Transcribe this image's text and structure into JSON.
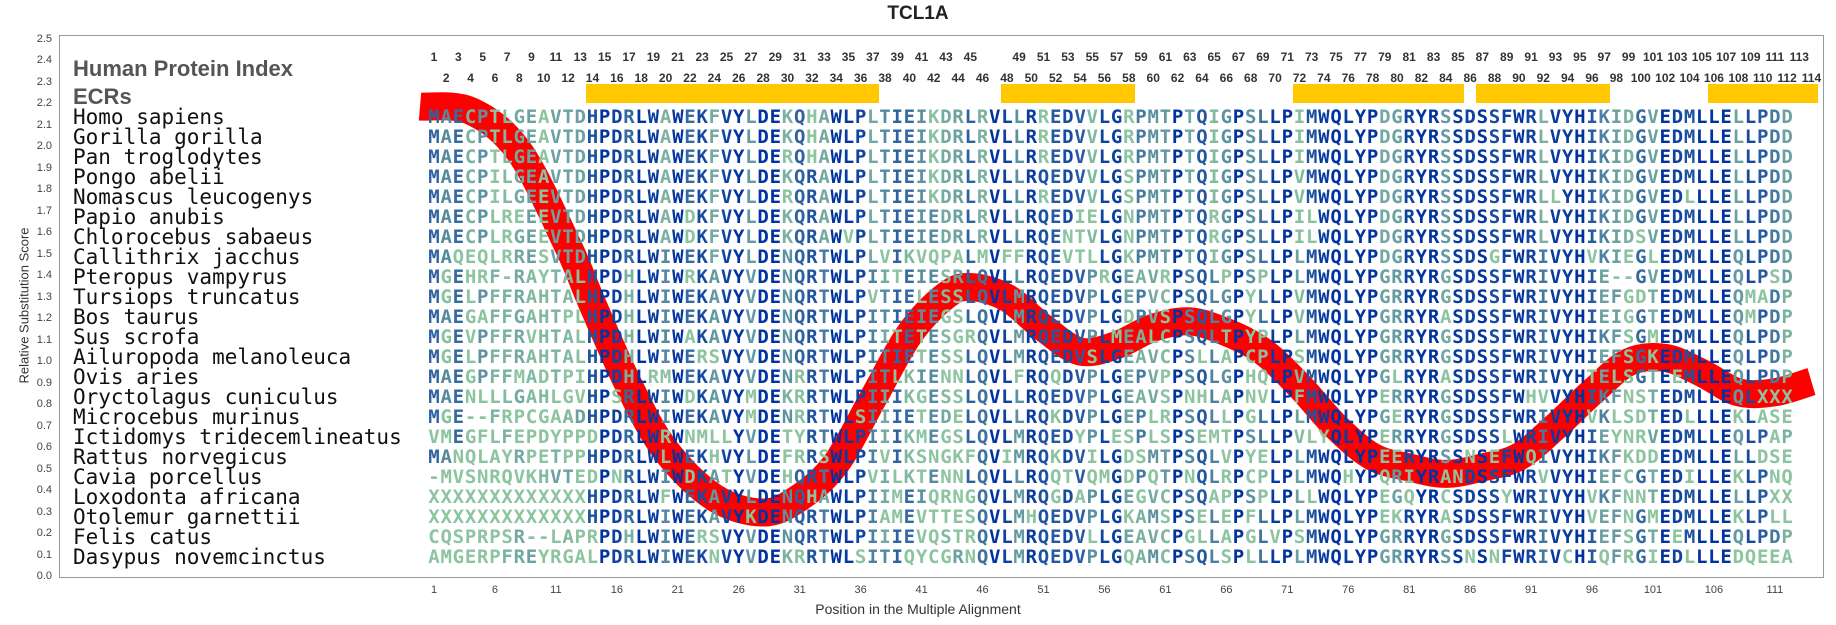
{
  "title": "TCL1A",
  "header": {
    "human_index_label": "Human Protein Index",
    "ecr_label": "ECRs"
  },
  "human_index": {
    "odd": [
      1,
      3,
      5,
      7,
      9,
      11,
      13,
      15,
      17,
      19,
      21,
      23,
      25,
      27,
      29,
      31,
      33,
      35,
      37,
      39,
      41,
      43,
      45,
      49,
      51,
      53,
      55,
      57,
      59,
      61,
      63,
      65,
      67,
      69,
      71,
      73,
      75,
      77,
      79,
      81,
      83,
      85,
      87,
      89,
      91,
      93,
      95,
      97,
      99,
      101,
      103,
      105,
      107,
      109,
      111,
      113
    ],
    "even": [
      2,
      4,
      6,
      8,
      10,
      12,
      14,
      16,
      18,
      20,
      22,
      24,
      26,
      28,
      30,
      32,
      34,
      36,
      38,
      40,
      42,
      44,
      46,
      48,
      50,
      52,
      54,
      56,
      58,
      60,
      62,
      64,
      66,
      68,
      70,
      72,
      74,
      76,
      78,
      80,
      82,
      84,
      86,
      88,
      90,
      92,
      94,
      96,
      98,
      100,
      102,
      104,
      106,
      108,
      110,
      112,
      114
    ]
  },
  "ecrs": [
    [
      14,
      37
    ],
    [
      48,
      58
    ],
    [
      72,
      85
    ],
    [
      87,
      97
    ],
    [
      106,
      114
    ]
  ],
  "colors": {
    "ecr": "#ffc800",
    "curve": "#ff0000",
    "conserved": "#0033a0",
    "variable": "#8cc4a0"
  },
  "species": [
    {
      "name": "Homo sapiens",
      "seq": "MAECPTLGEAVTDHPDRLWAWEKFVYLDEKQHAWLPLTIEIKDRLRVLLRREDVVLGRPMTPTQIGPSLLPIMWQLYPDGRYRSSDSSFWRLVYHIKIDGVEDMLLELLPDD"
    },
    {
      "name": "Gorilla gorilla",
      "seq": "MAECPTLGEAVTDHPDRLWAWEKFVYLDEKQHAWLPLTIEIKDRLRVLLRREDVVLGRPMTPTQIGPSLLPIMWQLYPDGRYRSSDSSFWRLVYHIKIDGVEDMLLELLPDD"
    },
    {
      "name": "Pan troglodytes",
      "seq": "MAECPTLGEAVTDHPDRLWAWEKFVYLDERQHAWLPLTIEIKDRLRVLLRREDVVLGRPMTPTQIGPSLLPIMWQLYPDGRYRSSDSSFWRLVYHIKIDGVEDMLLELLPDD"
    },
    {
      "name": "Pongo abelii",
      "seq": "MAECPILGEAVTDHPDRLWAWEKFVYLDEKQRAWLPLTIEIKDRLRVLLRQEDVVLGSPMTPTQIGPSLLPVMWQLYPDGRYRSSDSSFWRLVYHIKIDGVEDMLLELLPDD"
    },
    {
      "name": "Nomascus leucogenys",
      "seq": "MAECPILGEEVTDHPDRLWAWEKFVYLDERQRAWLPLTIEIKDRLRVLLRREDVVLGSPMTPTQIGPSLLPVMWQLYPDGRYRSSDSSFWRLLYHIKIDGVEDLLLELLPDD"
    },
    {
      "name": "Papio anubis",
      "seq": "MAECPLREEEVTDHPDRLWAWDKFVYLDEKQRAWLPLTIEIEDRLRVLLRQEDIELGNPMTPTQRGPSLLPILWQLYPDGRYRSSDSSFWRLVYHIKIDGVEDMLLELLPDD"
    },
    {
      "name": "Chlorocebus sabaeus",
      "seq": "MAECPLRGEEVTDHPDRLWAWDKFVYLDEKQRAWVPLTIEIEDRLRVLLRQENTVLGNPMTPTQRGPSLLPILWQLYPDGRYRSSDSSFWRLVYHIKIDSVEDMLLELLPDD"
    },
    {
      "name": "Callithrix jacchus",
      "seq": "MAQEQLRRESVTDHPDRLWIWEKFVYLDENQRTWLPLVIKVQPALMVFFRQEVTLLGKPMTPTQIGPSLLPLMWQLYPDGRYRSSDSGFWRIVYHVKIEGLEDMLLEQLPDD"
    },
    {
      "name": "Pteropus vampyrus",
      "seq": "MGEHRF-RAYTALHPDHLWIWRKAVYVDENQRTWLPIITEIESRLQVLLRQEDVPRGEAVRPSQLPPSPLPLMWQLYPGRRYRGSDSSFWRIVYHIE--GVEDMLLEQLPSD"
    },
    {
      "name": "Tursiops truncatus",
      "seq": "MGELPFFRAHTALHPDHLWIWEKAVYVDENQRTWLPVTIELESSLQVLMRQEDVPLGEPVCPSQLGPYLLPVMWQLYPGRRYRGSDSSFWRIVYHIEFGDTEDMLLEQMADP"
    },
    {
      "name": "Bos taurus",
      "seq": "MAEGAFFGAHTPLHPDHLWIWEKAVYVDENQRTWLPITIEIEGSLQVLMRQEDVPLGDPVSPSQLGPYLLPVMWQLYPGRRYRASDSSFWRIVYHIEIGGTEDMLLEQMPDP"
    },
    {
      "name": "Sus scrofa",
      "seq": "MGEVPFFRVHTALHPDHLWIWAKAVYVDENQRTWLPIITETESGRQVLMRQEDVPLMEALCPSQLTPYPLPLMWQLYPGRRYRGSDSSFWRIVYHIKFSGMEDMLLEQLPDP"
    },
    {
      "name": "Ailuropoda melanoleuca",
      "seq": "MGELPFFRAHTALHPDHLWIWERSVYVDENQRTWLPITIETESSLQVLMRQEDVSLGEAVCPSLLAPCPLPSMWQLYPGRRYRGSDSSFWRIVYHIEFSGKEDMLLEQLPDP"
    },
    {
      "name": "Ovis aries",
      "seq": "MAEGPFFMADTPIHPDHLRMWEKAVYVDENRRTWLPITLKIENNLQVLFRQQDVPLGEPVPPSQLGPHQLPVMWQLYPGLRYRASDSSFWRIVYHTELSGTEEMLLEQLPDP"
    },
    {
      "name": "Oryctolagus cuniculus",
      "seq": "MAENLLLGAHLGVHPSRLWIWDKAVYMDEKRRTWLPIIIKGESSLQVLLRQEDVPLGEAVSPNHLAPNVLPFMWQLYPERRYRGSDSSFWHVVYHIKFNSTEDMLLEQLXXX"
    },
    {
      "name": "Microcebus murinus",
      "seq": "MGE--FRPCGAADHPDRLWIWEKAVYMDENRRTWLSIIIETEDELQVLLRQKDVPLGEPLRPSQLLPGLLPLMWQLYPGERYRGSDSSFWRIVYHVKLSDTEDLLLEKLASE"
    },
    {
      "name": "Ictidomys tridecemlineatus",
      "seq": "VMEGFLFEPDYPPDPDRLWRWNMLLYVDETYRTWLPIIIKMEGSLQVLMRQEDYPLESPLSPSEMTPSLLPVLYQLYPERRYRGSDSSLWRIVYHIEYNRVEDMLLEQLPAP"
    },
    {
      "name": "Rattus norvegicus",
      "seq": "MANQLAYRPETPPHPDRLWLWEKHVYLDEFRRSWLPIVIKSNGKFQVIMRQKDVILGDSMTPSQLVPYELPLMWQLYPEERYRSSNSEFWQIVYHIKFKDDEDMLLELLDSE"
    },
    {
      "name": "Cavia porcellus",
      "seq": "-MVSNRQVKHVTEDPNRLWIWDKATYVDEHQRTWLPVILKTENNLQVLLRQQTVQMGDPQTPNQLRPCPLPLMWQHYPQRIYRANDSSFWRVVYHIEFCGTEDILLEKLPNQ"
    },
    {
      "name": "Loxodonta africana",
      "seq": "XXXXXXXXXXXXXHPDRLWFWEKAVYLDENQHAWLPIIMEIQRNGQVLMRQGDAPLGEGVCPSQAPPSPLPLLWQLYPEGQYRCSDSSYWRIVYHVKFNNTEDMLLELLPXX"
    },
    {
      "name": "Otolemur garnettii",
      "seq": "XXXXXXXXXXXXXHPDRLWIWEKAVYKDENQRTWLPIAMEVTTESQVLMHQEDVPLGKAMSPSELEPFLLPLMWQLYPEKRYRASDSSFWRIVYHVEFNGMEDMLLEKLPLL"
    },
    {
      "name": "Felis catus",
      "seq": "CQSPRPSR--LAPRPDHLWIWERSVYVDENQRTWLPIIIEVQSTRQVLMRQEDVLLGEAVCPGLLAPGLVPSMWQLYPGRRYRGSDSSFWRIVYHIEFSGTEEMLLEQLPDP"
    },
    {
      "name": "Dasypus novemcinctus",
      "seq": "AMGERPFREYRGALPDRLWIWEKNVYVDEKRRTWLSITIQYCGRNQVLMRQEDVPLGQAMCPSQLSPLLLPLMWQLYPGRRYRSSNSNFWRIVCHIQFRGIEDLLLEDQEEA"
    }
  ],
  "chart_data": {
    "type": "line",
    "title": "TCL1A",
    "xlabel": "Position in the Multiple Alignment",
    "ylabel": "Relative Substitution Score",
    "ylim": [
      0,
      2.5
    ],
    "yticks": [
      "0.0",
      "0.1",
      "0.2",
      "0.3",
      "0.4",
      "0.5",
      "0.6",
      "0.7",
      "0.8",
      "0.9",
      "1.0",
      "1.1",
      "1.2",
      "1.3",
      "1.4",
      "1.5",
      "1.6",
      "1.7",
      "1.8",
      "1.9",
      "2.0",
      "2.1",
      "2.2",
      "2.3",
      "2.4",
      "2.5"
    ],
    "xticks": [
      1,
      6,
      11,
      16,
      21,
      26,
      31,
      36,
      41,
      46,
      51,
      56,
      61,
      66,
      71,
      76,
      81,
      86,
      91,
      96,
      101,
      106,
      111
    ],
    "grid": false,
    "series": [
      {
        "x": [
          1,
          4,
          8,
          12,
          14,
          17,
          20,
          24,
          28,
          31,
          34,
          37,
          40,
          43,
          45,
          48,
          51,
          54,
          57,
          60,
          63,
          66,
          69,
          72,
          75,
          78,
          81,
          84,
          87,
          90,
          93,
          96,
          99,
          102,
          105,
          108,
          111,
          114
        ],
        "y": [
          2.19,
          2.17,
          1.98,
          1.54,
          1.27,
          0.89,
          0.59,
          0.37,
          0.3,
          0.37,
          0.53,
          0.83,
          1.13,
          1.31,
          1.35,
          1.3,
          1.16,
          1.05,
          1.08,
          1.16,
          1.19,
          1.14,
          1.05,
          0.89,
          0.7,
          0.56,
          0.51,
          0.48,
          0.51,
          0.56,
          0.7,
          0.86,
          1.0,
          1.02,
          0.95,
          0.86,
          0.86,
          0.91
        ]
      }
    ]
  }
}
